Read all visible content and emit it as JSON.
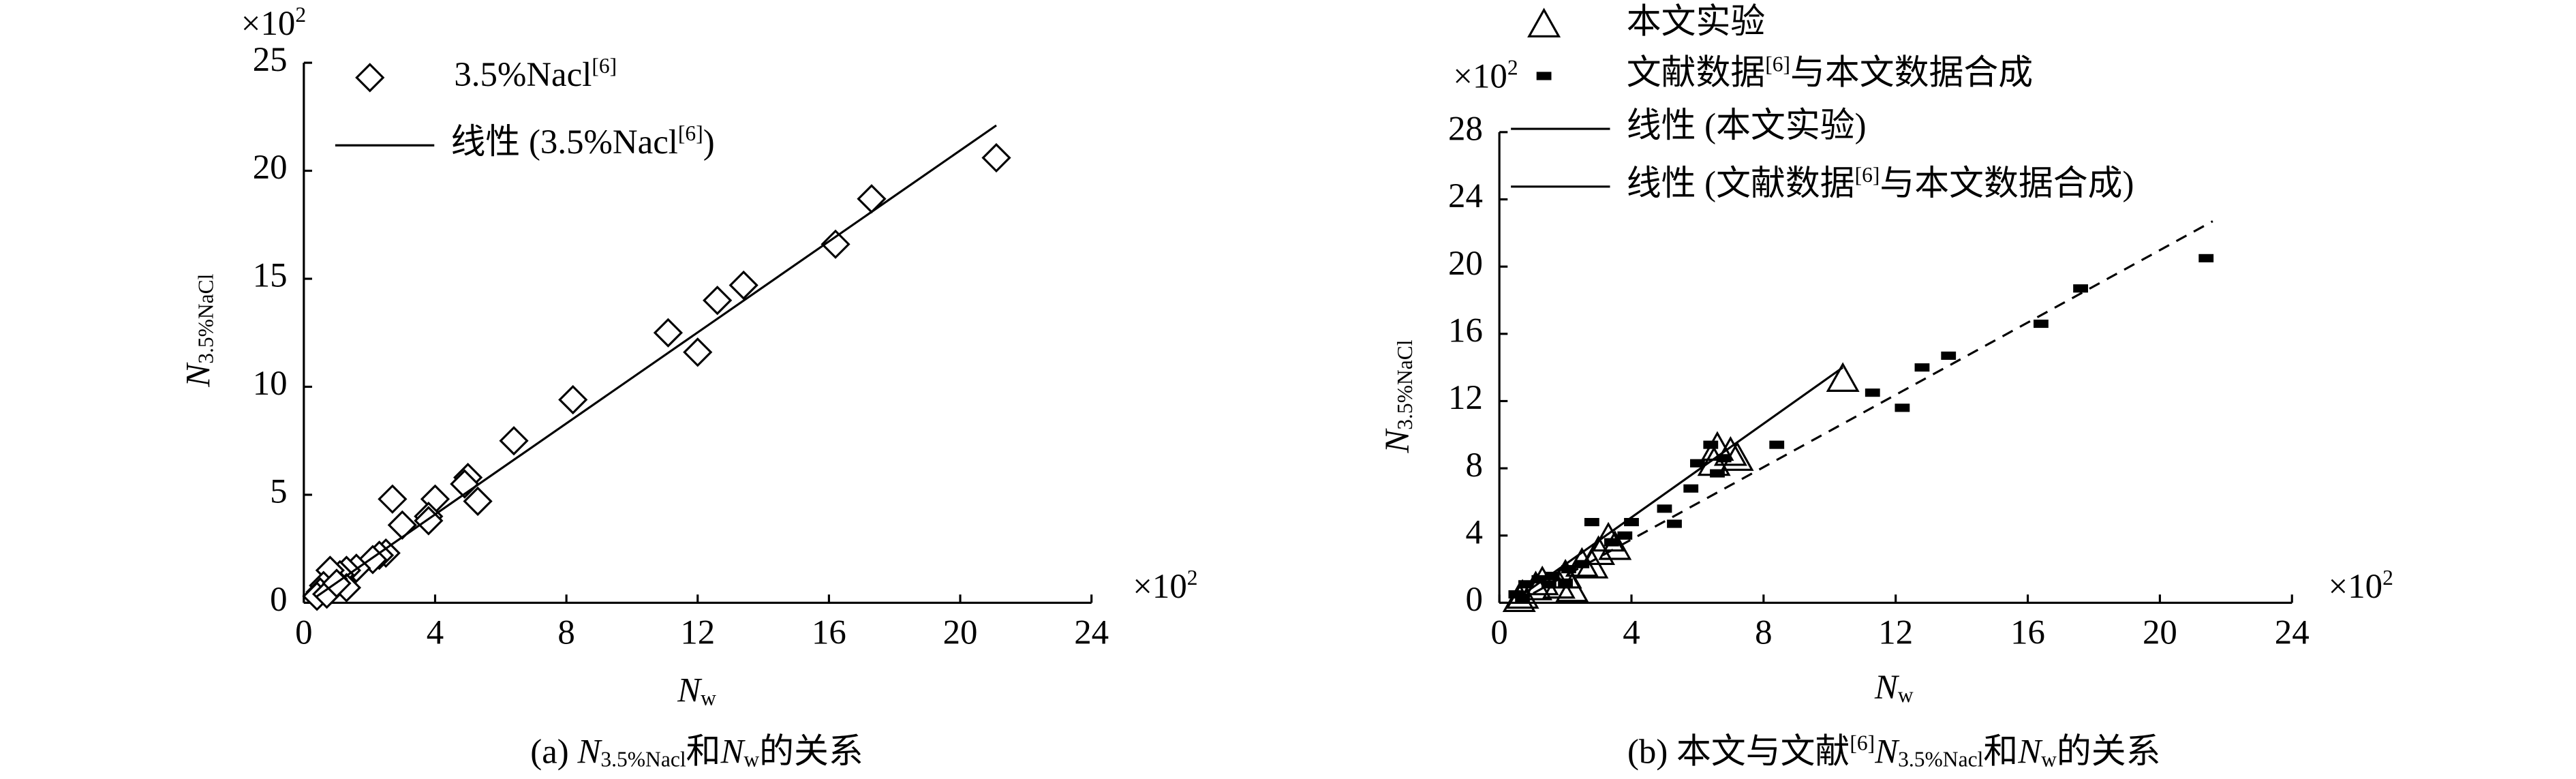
{
  "chart_data": [
    {
      "type": "scatter",
      "x_label": [
        {
          "text": "N",
          "style": "italic"
        },
        {
          "text": "w",
          "style": "sub"
        }
      ],
      "y_label": [
        {
          "text": "N",
          "style": "italic"
        },
        {
          "text": "3.5%NaCl",
          "style": "sub"
        }
      ],
      "x_unit": [
        {
          "text": "×10"
        },
        {
          "text": "2",
          "style": "sup"
        }
      ],
      "y_unit": [
        {
          "text": "×10"
        },
        {
          "text": "2",
          "style": "sup"
        }
      ],
      "caption": [
        {
          "text": "(a) "
        },
        {
          "text": "N",
          "style": "italic"
        },
        {
          "text": "3.5%Nacl",
          "style": "sub"
        },
        {
          "text": "和"
        },
        {
          "text": "N",
          "style": "italic"
        },
        {
          "text": "w",
          "style": "sub"
        },
        {
          "text": "的关系"
        }
      ],
      "xlim": [
        0,
        24
      ],
      "xticks": [
        0,
        4,
        8,
        12,
        16,
        20,
        24
      ],
      "ylim": [
        0,
        25
      ],
      "yticks": [
        0,
        5,
        10,
        15,
        20,
        25
      ],
      "series": [
        {
          "name": [
            {
              "text": "3.5%Nacl"
            },
            {
              "text": "[6]",
              "style": "sup"
            }
          ],
          "marker": "diamond",
          "color": "#000000",
          "x": [
            21.1,
            17.3,
            16.2,
            13.4,
            12.6,
            11.1,
            12.0,
            8.2,
            6.4,
            5.0,
            4.9,
            5.3,
            4.0,
            2.7,
            3.8,
            3.8,
            3.0,
            2.5,
            2.3,
            2.1,
            1.6,
            1.3,
            1.1,
            1.3,
            0.9,
            0.8,
            0.6,
            0.5,
            0.4,
            0.7,
            1.0
          ],
          "values": [
            20.6,
            18.7,
            16.6,
            14.7,
            14.0,
            12.5,
            11.6,
            9.4,
            7.5,
            5.8,
            5.5,
            4.7,
            4.8,
            4.8,
            4.0,
            3.8,
            3.6,
            2.3,
            2.2,
            2.0,
            1.6,
            1.5,
            1.3,
            0.7,
            1.1,
            1.5,
            0.8,
            0.5,
            0.3,
            0.4,
            0.9
          ]
        },
        {
          "name": [
            {
              "text": "线性 (3.5%Nacl"
            },
            {
              "text": "[6]",
              "style": "sup"
            },
            {
              "text": ")"
            }
          ],
          "line": "solid",
          "color": "#000000",
          "x": [
            0.4,
            21.1
          ],
          "values": [
            0.3,
            22.1
          ]
        }
      ]
    },
    {
      "type": "scatter",
      "x_label": [
        {
          "text": "N",
          "style": "italic"
        },
        {
          "text": "w",
          "style": "sub"
        }
      ],
      "y_label": [
        {
          "text": "N",
          "style": "italic"
        },
        {
          "text": "3.5%NaCl",
          "style": "sub"
        }
      ],
      "x_unit": [
        {
          "text": "×10"
        },
        {
          "text": "2",
          "style": "sup"
        }
      ],
      "y_unit": [
        {
          "text": "×10"
        },
        {
          "text": "2",
          "style": "sup"
        }
      ],
      "caption": [
        {
          "text": "(b) 本文与文献"
        },
        {
          "text": "[6]",
          "style": "sup"
        },
        {
          "text": "N",
          "style": "italic"
        },
        {
          "text": "3.5%Nacl",
          "style": "sub"
        },
        {
          "text": "和"
        },
        {
          "text": "N",
          "style": "italic"
        },
        {
          "text": "w",
          "style": "sub"
        },
        {
          "text": "的关系"
        }
      ],
      "xlim": [
        0,
        24
      ],
      "xticks": [
        0,
        4,
        8,
        12,
        16,
        20,
        24
      ],
      "ylim": [
        0,
        28
      ],
      "yticks": [
        0,
        4,
        8,
        12,
        16,
        20,
        24,
        28
      ],
      "series": [
        {
          "name": [
            {
              "text": "本文实验"
            }
          ],
          "marker": "triangle",
          "color": "#000000",
          "x": [
            10.4,
            7.0,
            6.6,
            6.5,
            7.2,
            3.3,
            3.0,
            3.5,
            2.5,
            2.0,
            1.8,
            1.3,
            1.1,
            2.2,
            2.8,
            0.7,
            0.6
          ],
          "values": [
            13.3,
            8.9,
            9.2,
            8.3,
            8.6,
            3.8,
            3.0,
            3.3,
            2.3,
            1.6,
            1.0,
            1.2,
            0.9,
            0.8,
            2.2,
            0.4,
            0.2
          ]
        },
        {
          "name": [
            {
              "text": "文献数据"
            },
            {
              "text": "[6]",
              "style": "sup"
            },
            {
              "text": "与本文数据合成"
            }
          ],
          "marker": "dash",
          "color": "#000000",
          "x": [
            21.4,
            17.6,
            16.4,
            13.6,
            12.8,
            11.3,
            12.2,
            8.4,
            6.6,
            6.4,
            6.8,
            5.0,
            5.3,
            4.0,
            2.8,
            3.8,
            3.4,
            5.8,
            6.0,
            2.5,
            2.1,
            1.6,
            1.2,
            0.8,
            0.5,
            0.7,
            1.5,
            2.0
          ],
          "values": [
            20.5,
            18.7,
            16.6,
            14.7,
            14.0,
            12.5,
            11.6,
            9.4,
            7.7,
            9.4,
            8.6,
            5.6,
            4.7,
            4.8,
            4.8,
            4.0,
            3.6,
            6.8,
            8.3,
            2.3,
            2.0,
            1.6,
            1.4,
            1.1,
            0.5,
            0.3,
            1.1,
            1.2
          ]
        },
        {
          "name": [
            {
              "text": "线性 (本文实验)"
            }
          ],
          "line": "solid",
          "color": "#000000",
          "x": [
            0.5,
            10.4
          ],
          "values": [
            0.2,
            14.0
          ]
        },
        {
          "name": [
            {
              "text": "线性 ("
            },
            {
              "text": "文献数据"
            },
            {
              "text": "[6]",
              "style": "sup"
            },
            {
              "text": "与本文数据合成)"
            }
          ],
          "line": "dashed",
          "color": "#000000",
          "x": [
            0.5,
            21.6
          ],
          "values": [
            0.0,
            22.7
          ]
        }
      ]
    }
  ]
}
